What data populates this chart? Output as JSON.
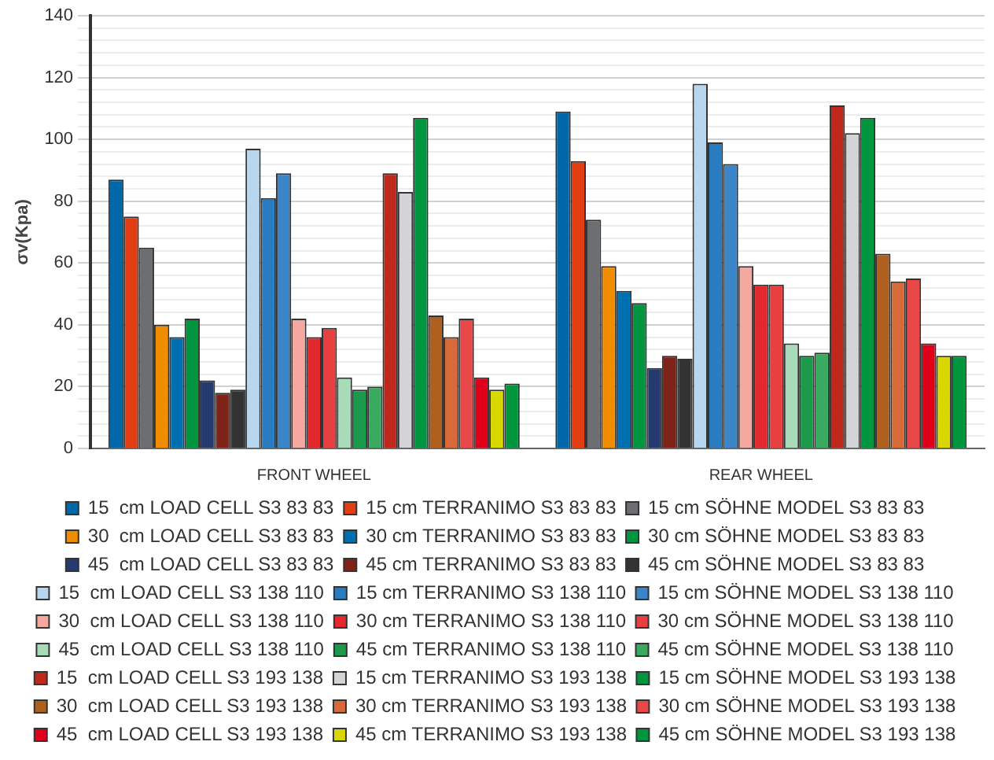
{
  "chart_data": {
    "type": "bar",
    "ylabel": "σv(Kpa)",
    "categories": [
      "FRONT WHEEL",
      "REAR WHEEL"
    ],
    "ylim": [
      0,
      140
    ],
    "yticks": [
      0,
      {
        "value": 4,
        "label": null
      },
      {
        "value": 8,
        "label": null
      },
      {
        "value": 12,
        "label": null
      },
      {
        "value": 16,
        "label": null
      },
      20,
      {
        "value": 24,
        "label": null
      },
      {
        "value": 28,
        "label": null
      },
      {
        "value": 32,
        "label": null
      },
      {
        "value": 36,
        "label": null
      },
      40,
      {
        "value": 44,
        "label": null
      },
      {
        "value": 48,
        "label": null
      },
      {
        "value": 52,
        "label": null
      },
      {
        "value": 56,
        "label": null
      },
      60,
      {
        "value": 64,
        "label": null
      },
      {
        "value": 68,
        "label": null
      },
      {
        "value": 72,
        "label": null
      },
      {
        "value": 76,
        "label": null
      },
      80,
      {
        "value": 84,
        "label": null
      },
      {
        "value": 88,
        "label": null
      },
      {
        "value": 92,
        "label": null
      },
      {
        "value": 96,
        "label": null
      },
      100,
      {
        "value": 104,
        "label": null
      },
      {
        "value": 108,
        "label": null
      },
      {
        "value": 112,
        "label": null
      },
      {
        "value": 116,
        "label": null
      },
      120,
      {
        "value": 124,
        "label": null
      },
      {
        "value": 128,
        "label": null
      },
      {
        "value": 132,
        "label": null
      },
      {
        "value": 136,
        "label": null
      },
      140
    ],
    "grid": "y",
    "legend": "bottom",
    "series": [
      {
        "name": "15  cm LOAD CELL S3 83 83",
        "color": "#0068a8",
        "values": [
          87,
          109
        ]
      },
      {
        "name": "15 cm TERRANIMO S3 83 83",
        "color": "#e23e14",
        "values": [
          75,
          93
        ]
      },
      {
        "name": "15 cm SÖHNE MODEL S3 83 83",
        "color": "#6d6e71",
        "values": [
          65,
          74
        ]
      },
      {
        "name": "30  cm LOAD CELL S3 83 83",
        "color": "#f08c00",
        "values": [
          40,
          59
        ]
      },
      {
        "name": "30 cm TERRANIMO S3 83 83",
        "color": "#0070b0",
        "values": [
          36,
          51
        ]
      },
      {
        "name": "30 cm SÖHNE MODEL S3 83 83",
        "color": "#009640",
        "values": [
          42,
          47
        ]
      },
      {
        "name": "45  cm LOAD CELL S3 83 83",
        "color": "#253a6e",
        "values": [
          22,
          26
        ]
      },
      {
        "name": "45 cm TERRANIMO S3 83 83",
        "color": "#7f2218",
        "values": [
          18,
          30
        ]
      },
      {
        "name": "45 cm SÖHNE MODEL S3 83 83",
        "color": "#333333",
        "values": [
          19,
          29
        ]
      },
      {
        "name": "15  cm LOAD CELL S3 138 110",
        "color": "#b8d6ee",
        "values": [
          97,
          118
        ]
      },
      {
        "name": "15 cm TERRANIMO S3 138 110",
        "color": "#2a7cc0",
        "values": [
          81,
          99
        ]
      },
      {
        "name": "15 cm SÖHNE MODEL S3 138 110",
        "color": "#3a86c8",
        "values": [
          89,
          92
        ]
      },
      {
        "name": "30  cm LOAD CELL S3 138 110",
        "color": "#f4a8a0",
        "values": [
          42,
          59
        ]
      },
      {
        "name": "30 cm TERRANIMO S3 138 110",
        "color": "#e3282e",
        "values": [
          36,
          53
        ]
      },
      {
        "name": "30 cm SÖHNE MODEL S3 138 110",
        "color": "#e84040",
        "values": [
          39,
          53
        ]
      },
      {
        "name": "45  cm LOAD CELL S3 138 110",
        "color": "#a8dcb8",
        "values": [
          23,
          34
        ]
      },
      {
        "name": "45 cm TERRANIMO S3 138 110",
        "color": "#1a9a4a",
        "values": [
          19,
          30
        ]
      },
      {
        "name": "45 cm SÖHNE MODEL S3 138 110",
        "color": "#3aaa60",
        "values": [
          20,
          31
        ]
      },
      {
        "name": "15  cm LOAD CELL S3 193 138",
        "color": "#c0281c",
        "values": [
          89,
          111
        ]
      },
      {
        "name": "15 cm TERRANIMO S3 193 138",
        "color": "#d4d4d8",
        "values": [
          83,
          102
        ]
      },
      {
        "name": "15 cm SÖHNE MODEL S3 193 138",
        "color": "#009640",
        "values": [
          107,
          107
        ]
      },
      {
        "name": "30  cm LOAD CELL S3 193 138",
        "color": "#b0601e",
        "values": [
          43,
          63
        ]
      },
      {
        "name": "30 cm TERRANIMO S3 193 138",
        "color": "#d86a3a",
        "values": [
          36,
          54
        ]
      },
      {
        "name": "30 cm SÖHNE MODEL S3 193 138",
        "color": "#e84848",
        "values": [
          42,
          55
        ]
      },
      {
        "name": "45  cm LOAD CELL S3 193 138",
        "color": "#e0001a",
        "values": [
          23,
          34
        ]
      },
      {
        "name": "45 cm TERRANIMO S3 193 138",
        "color": "#d8d800",
        "values": [
          19,
          30
        ]
      },
      {
        "name": "45 cm SÖHNE MODEL S3 193 138",
        "color": "#00963e",
        "values": [
          21,
          30
        ]
      }
    ]
  }
}
